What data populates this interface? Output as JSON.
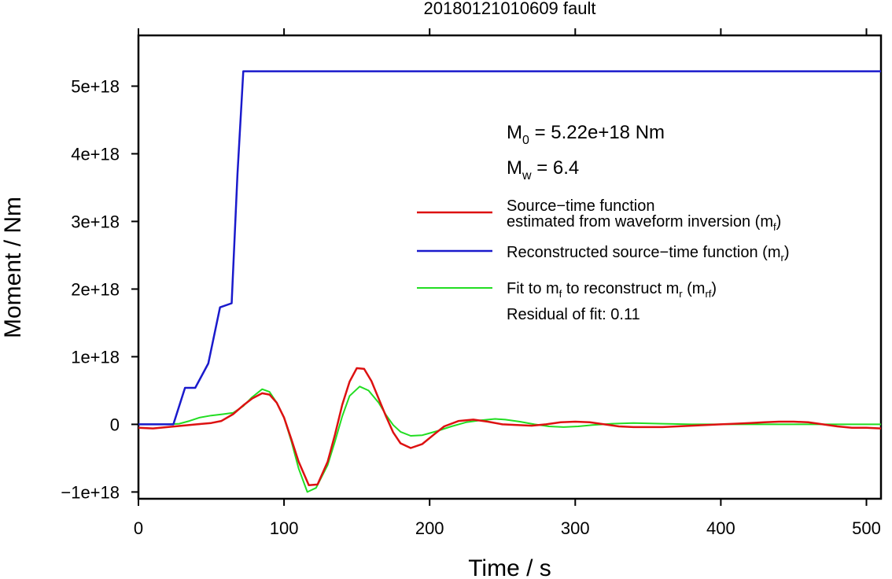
{
  "chart_data": {
    "type": "line",
    "title": "20180121010609 fault",
    "xlabel": "Time / s",
    "ylabel": "Moment / Nm",
    "xlim": [
      0,
      510
    ],
    "ylim": [
      -1.1e+18,
      5.75e+18
    ],
    "xticks": [
      0,
      100,
      200,
      300,
      400,
      500
    ],
    "xtick_labels": [
      "0",
      "100",
      "200",
      "300",
      "400",
      "500"
    ],
    "yticks": [
      -1e+18,
      0,
      1e+18,
      2e+18,
      3e+18,
      4e+18,
      5e+18
    ],
    "ytick_labels": [
      "−1e+18",
      "0",
      "1e+18",
      "2e+18",
      "3e+18",
      "4e+18",
      "5e+18"
    ],
    "grid": false,
    "legend_position": "right",
    "annotations": {
      "m0_prefix": "M",
      "m0_sub": "0",
      "m0_value": " = 5.22e+18 Nm",
      "mw_prefix": "M",
      "mw_sub": "w",
      "mw_value": " = 6.4",
      "residual": "Residual of fit: 0.11"
    },
    "legend": [
      {
        "series": "mf",
        "color": "#dd1111",
        "line1": "Source−time function",
        "line2_pre": "estimated from waveform inversion (m",
        "line2_sub": "f",
        "line2_post": ")"
      },
      {
        "series": "mr",
        "color": "#1a1acc",
        "line1_pre": "Reconstructed source−time function (m",
        "line1_sub": "r",
        "line1_post": ")"
      },
      {
        "series": "mrf",
        "color": "#22dd22",
        "l_a": "Fit to m",
        "l_a_sub": "f",
        "l_b": " to reconstruct m",
        "l_b_sub": "r",
        "l_c": " (m",
        "l_c_sub": "rf",
        "l_d": ")"
      }
    ],
    "series": [
      {
        "key": "mf",
        "color": "#dd1111",
        "x": [
          0,
          10,
          20,
          30,
          40,
          50,
          57,
          65,
          72,
          78,
          85,
          90,
          95,
          100,
          105,
          110,
          117,
          123,
          130,
          135,
          140,
          145,
          150,
          155,
          160,
          165,
          170,
          175,
          180,
          187,
          195,
          203,
          210,
          220,
          230,
          240,
          250,
          260,
          270,
          280,
          290,
          300,
          310,
          320,
          330,
          340,
          350,
          360,
          370,
          380,
          390,
          400,
          410,
          420,
          430,
          440,
          450,
          460,
          470,
          480,
          490,
          500,
          510
        ],
        "y": [
          -5e+16,
          -6e+16,
          -4e+16,
          -2e+16,
          0,
          2e+16,
          5e+16,
          1.5e+17,
          2.8e+17,
          3.8e+17,
          4.6e+17,
          4.4e+17,
          3.2e+17,
          1e+17,
          -2.2e+17,
          -5.5e+17,
          -9e+17,
          -8.9e+17,
          -5.5e+17,
          -1.5e+17,
          2.9e+17,
          6.3e+17,
          8.3e+17,
          8.2e+17,
          6.4e+17,
          3.8e+17,
          1.2e+17,
          -1.2e+17,
          -2.8e+17,
          -3.5e+17,
          -2.9e+17,
          -1.5e+17,
          -3e+16,
          5e+16,
          7e+16,
          4e+16,
          0,
          -1e+16,
          -2e+16,
          0,
          3e+16,
          4e+16,
          3e+16,
          0,
          -3e+16,
          -4e+16,
          -4e+16,
          -4e+16,
          -3e+16,
          -2e+16,
          -1e+16,
          0,
          1e+16,
          2e+16,
          3e+16,
          4e+16,
          4e+16,
          3e+16,
          0,
          -3e+16,
          -5e+16,
          -5e+16,
          -6e+16
        ]
      },
      {
        "key": "mr",
        "color": "#1a1acc",
        "x": [
          0,
          24,
          32,
          39,
          48,
          56,
          64,
          68,
          72,
          510
        ],
        "y": [
          0,
          0,
          5.4e+17,
          5.4e+17,
          9e+17,
          1.73e+18,
          1.79e+18,
          3.7e+18,
          5.22e+18,
          5.22e+18
        ]
      },
      {
        "key": "mrf",
        "color": "#22dd22",
        "x": [
          0,
          20,
          28,
          35,
          42,
          50,
          58,
          65,
          72,
          78,
          85,
          90,
          95,
          100,
          105,
          110,
          116,
          122,
          130,
          135,
          140,
          145,
          152,
          158,
          165,
          170,
          175,
          180,
          187,
          195,
          200,
          205,
          215,
          225,
          235,
          245,
          252,
          262,
          272,
          282,
          292,
          302,
          312,
          325,
          340,
          360,
          380,
          400,
          420,
          440,
          460,
          480,
          500,
          510
        ],
        "y": [
          0,
          0,
          1e+16,
          5e+16,
          1e+17,
          1.3e+17,
          1.5e+17,
          1.7e+17,
          2.7e+17,
          4e+17,
          5.2e+17,
          4.8e+17,
          3.2e+17,
          1e+17,
          -2.5e+17,
          -6.5e+17,
          -1e+18,
          -9.4e+17,
          -6e+17,
          -2.5e+17,
          1.2e+17,
          4.2e+17,
          5.6e+17,
          5e+17,
          3.2e+17,
          1.4e+17,
          -1e+16,
          -1.1e+17,
          -1.7e+17,
          -1.6e+17,
          -1.3e+17,
          -1e+17,
          -3e+16,
          3e+16,
          6e+16,
          8e+16,
          7e+16,
          4e+16,
          0,
          -3e+16,
          -4e+16,
          -3e+16,
          -1e+16,
          1e+16,
          2e+16,
          1e+16,
          0,
          0,
          0,
          0,
          0,
          0,
          0,
          0
        ]
      }
    ]
  }
}
